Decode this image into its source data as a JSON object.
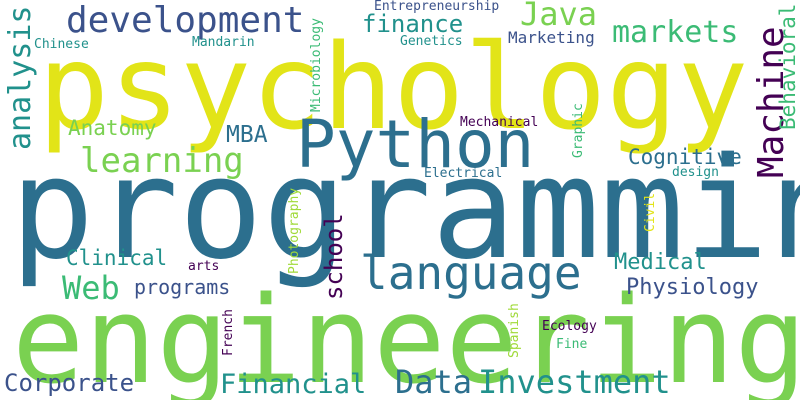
{
  "palette": {
    "dark_purple": "#440154",
    "indigo": "#3b528b",
    "teal_blue": "#2c6f8e",
    "teal": "#21918c",
    "green": "#3bbb75",
    "lime": "#7ad151",
    "light_lime": "#a0da39",
    "yellow": "#e2e418"
  },
  "words": [
    {
      "text": "psychology"
    },
    {
      "text": "programming"
    },
    {
      "text": "engineering"
    },
    {
      "text": "Python"
    },
    {
      "text": "language"
    },
    {
      "text": "development"
    },
    {
      "text": "learning"
    },
    {
      "text": "Machine"
    },
    {
      "text": "analysis"
    },
    {
      "text": "Java"
    },
    {
      "text": "finance"
    },
    {
      "text": "markets"
    },
    {
      "text": "Data"
    },
    {
      "text": "Investment"
    },
    {
      "text": "Financial"
    },
    {
      "text": "Corporate"
    },
    {
      "text": "Web"
    },
    {
      "text": "Anatomy"
    },
    {
      "text": "MBA"
    },
    {
      "text": "Cognitive"
    },
    {
      "text": "Behavioral"
    },
    {
      "text": "school"
    },
    {
      "text": "Clinical"
    },
    {
      "text": "Medical"
    },
    {
      "text": "Physiology"
    },
    {
      "text": "programs"
    },
    {
      "text": "Entrepreneurship"
    },
    {
      "text": "Genetics"
    },
    {
      "text": "Marketing"
    },
    {
      "text": "Chinese"
    },
    {
      "text": "Mandarin"
    },
    {
      "text": "Microbiology"
    },
    {
      "text": "Mechanical"
    },
    {
      "text": "Electrical"
    },
    {
      "text": "Graphic"
    },
    {
      "text": "design"
    },
    {
      "text": "Civil"
    },
    {
      "text": "Photography"
    },
    {
      "text": "arts"
    },
    {
      "text": "Spanish"
    },
    {
      "text": "French"
    },
    {
      "text": "Ecology"
    },
    {
      "text": "Fine"
    }
  ]
}
